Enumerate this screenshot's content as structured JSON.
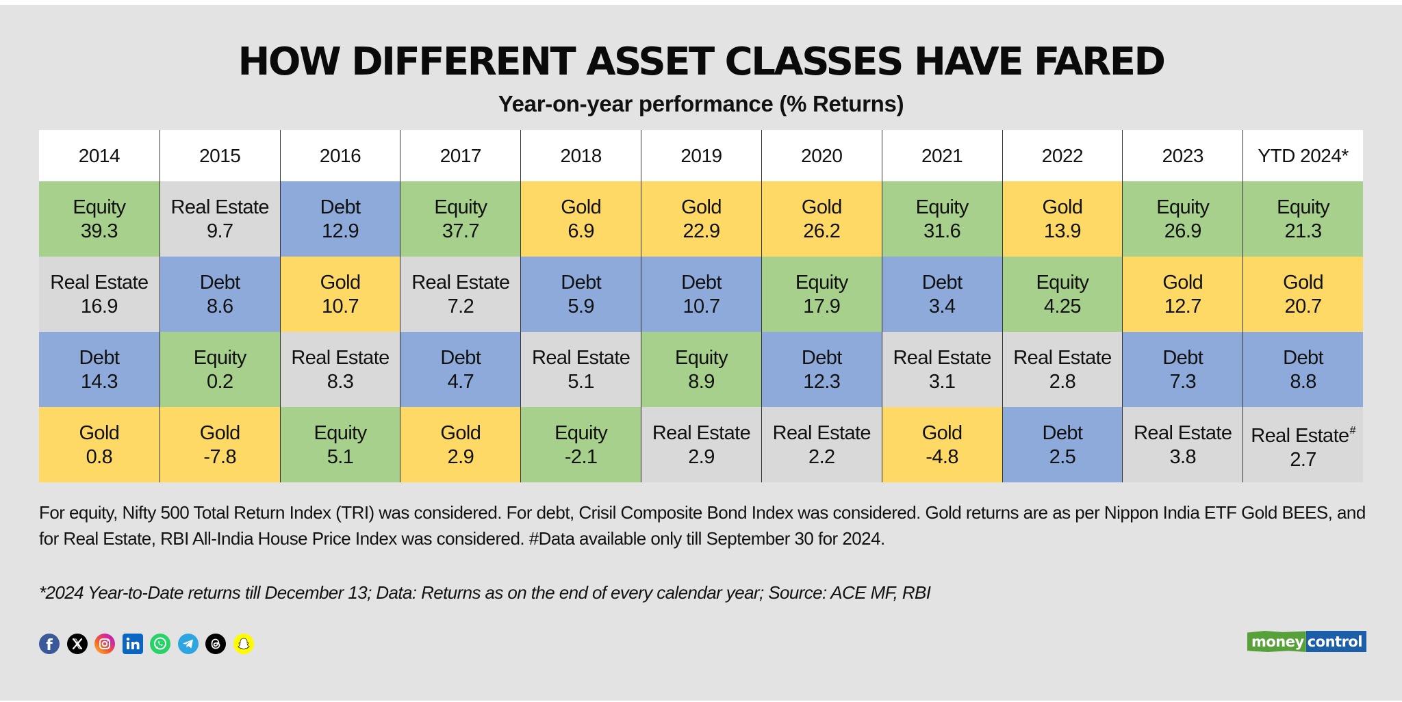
{
  "header": {
    "title": "HOW DIFFERENT ASSET CLASSES HAVE FARED",
    "subtitle": "Year-on-year performance (% Returns)"
  },
  "colors": {
    "Equity": "#a8d08d",
    "Real Estate": "#d9d9d9",
    "Debt": "#8eaadb",
    "Gold": "#ffd966",
    "header_bg": "#ffffff",
    "page_bg": "#e3e3e3"
  },
  "chart_data": {
    "type": "table",
    "title": "HOW DIFFERENT ASSET CLASSES HAVE FARED",
    "subtitle": "Year-on-year performance (% Returns)",
    "unit": "% Returns",
    "ranking": "Each column ranks asset classes from best (top) to worst (bottom) return for that year",
    "columns": [
      "2014",
      "2015",
      "2016",
      "2017",
      "2018",
      "2019",
      "2020",
      "2021",
      "2022",
      "2023",
      "YTD 2024*"
    ],
    "ranks": [
      [
        {
          "asset": "Equity",
          "value": "39.3"
        },
        {
          "asset": "Real Estate",
          "value": "9.7"
        },
        {
          "asset": "Debt",
          "value": "12.9"
        },
        {
          "asset": "Equity",
          "value": "37.7"
        },
        {
          "asset": "Gold",
          "value": "6.9"
        },
        {
          "asset": "Gold",
          "value": "22.9"
        },
        {
          "asset": "Gold",
          "value": "26.2"
        },
        {
          "asset": "Equity",
          "value": "31.6"
        },
        {
          "asset": "Gold",
          "value": "13.9"
        },
        {
          "asset": "Equity",
          "value": "26.9"
        },
        {
          "asset": "Equity",
          "value": "21.3"
        }
      ],
      [
        {
          "asset": "Real Estate",
          "value": "16.9"
        },
        {
          "asset": "Debt",
          "value": "8.6"
        },
        {
          "asset": "Gold",
          "value": "10.7"
        },
        {
          "asset": "Real Estate",
          "value": "7.2"
        },
        {
          "asset": "Debt",
          "value": "5.9"
        },
        {
          "asset": "Debt",
          "value": "10.7"
        },
        {
          "asset": "Equity",
          "value": "17.9"
        },
        {
          "asset": "Debt",
          "value": "3.4"
        },
        {
          "asset": "Equity",
          "value": "4.25"
        },
        {
          "asset": "Gold",
          "value": "12.7"
        },
        {
          "asset": "Gold",
          "value": "20.7"
        }
      ],
      [
        {
          "asset": "Debt",
          "value": "14.3"
        },
        {
          "asset": "Equity",
          "value": "0.2"
        },
        {
          "asset": "Real Estate",
          "value": "8.3"
        },
        {
          "asset": "Debt",
          "value": "4.7"
        },
        {
          "asset": "Real Estate",
          "value": "5.1"
        },
        {
          "asset": "Equity",
          "value": "8.9"
        },
        {
          "asset": "Debt",
          "value": "12.3"
        },
        {
          "asset": "Real Estate",
          "value": "3.1"
        },
        {
          "asset": "Real Estate",
          "value": "2.8"
        },
        {
          "asset": "Debt",
          "value": "7.3"
        },
        {
          "asset": "Debt",
          "value": "8.8"
        }
      ],
      [
        {
          "asset": "Gold",
          "value": "0.8"
        },
        {
          "asset": "Gold",
          "value": "-7.8"
        },
        {
          "asset": "Equity",
          "value": "5.1"
        },
        {
          "asset": "Gold",
          "value": "2.9"
        },
        {
          "asset": "Equity",
          "value": "-2.1"
        },
        {
          "asset": "Real Estate",
          "value": "2.9"
        },
        {
          "asset": "Real Estate",
          "value": "2.2"
        },
        {
          "asset": "Gold",
          "value": "-4.8"
        },
        {
          "asset": "Debt",
          "value": "2.5"
        },
        {
          "asset": "Real Estate",
          "value": "3.8"
        },
        {
          "asset": "Real Estate",
          "value": "2.7",
          "marker": "#"
        }
      ]
    ]
  },
  "notes": {
    "methodology": "For equity, Nifty 500 Total Return Index (TRI) was considered. For debt, Crisil Composite Bond Index was considered. Gold returns are as per Nippon India ETF Gold BEES, and for Real Estate, RBI All-India House Price Index was considered. #Data available only till September 30 for 2024.",
    "footnote": "*2024 Year-to-Date returns till December 13; Data: Returns as on the end of every calendar year; Source: ACE MF, RBI"
  },
  "social_icons": [
    {
      "name": "facebook-icon",
      "glyph": "f",
      "color": "#3b5998"
    },
    {
      "name": "x-twitter-icon",
      "glyph": "𝕏",
      "color": "#000000"
    },
    {
      "name": "instagram-icon",
      "glyph": "",
      "color": "#d6249f"
    },
    {
      "name": "linkedin-icon",
      "glyph": "in",
      "color": "#0a66c2"
    },
    {
      "name": "whatsapp-icon",
      "glyph": "",
      "color": "#25d366"
    },
    {
      "name": "telegram-icon",
      "glyph": "",
      "color": "#2ca5e0"
    },
    {
      "name": "threads-icon",
      "glyph": "@",
      "color": "#000000"
    },
    {
      "name": "snapchat-icon",
      "glyph": "",
      "color": "#fffc00"
    }
  ],
  "brand": {
    "part1": "money",
    "part2": "control",
    "color1": "#57a13a",
    "color2": "#1c5ea8"
  }
}
